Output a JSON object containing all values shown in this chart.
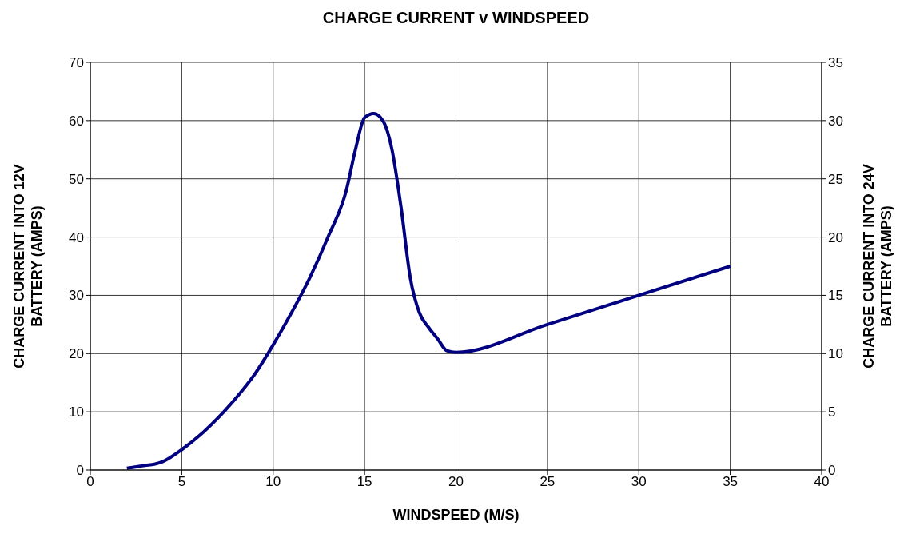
{
  "chart_data": {
    "type": "line",
    "title": "CHARGE CURRENT v WINDSPEED",
    "xlabel": "WINDSPEED (M/S)",
    "ylabel": "CHARGE CURRENT INTO 12V BATTERY (AMPS)",
    "y2label": "CHARGE CURRENT INTO 24V BATTERY (AMPS)",
    "x": [
      2,
      3,
      3.5,
      4,
      5,
      6,
      7,
      8,
      9,
      10,
      11,
      12,
      13,
      14,
      14.5,
      15,
      15.5,
      16,
      16.5,
      17,
      17.5,
      18,
      18.5,
      19,
      19.5,
      20,
      25,
      30,
      35
    ],
    "series": [
      {
        "color": "#000080",
        "values": [
          0.3,
          0.8,
          1,
          1.5,
          3.5,
          6,
          9,
          12.5,
          16.5,
          21.5,
          27,
          33,
          40,
          48,
          55,
          60.5,
          61.2,
          60,
          55,
          45,
          33,
          27,
          24.5,
          22.5,
          20.5,
          20.2,
          25,
          30,
          35
        ]
      }
    ],
    "xlim": [
      0,
      40
    ],
    "xticks": [
      0,
      5,
      10,
      15,
      20,
      25,
      30,
      35,
      40
    ],
    "ylim": [
      0,
      70
    ],
    "yticks": [
      0,
      10,
      20,
      30,
      40,
      50,
      60,
      70
    ],
    "y2lim": [
      0,
      35
    ],
    "y2ticks": [
      0,
      5,
      10,
      15,
      20,
      25,
      30,
      35
    ],
    "grid": true,
    "marker": "none",
    "line_style": "solid"
  }
}
